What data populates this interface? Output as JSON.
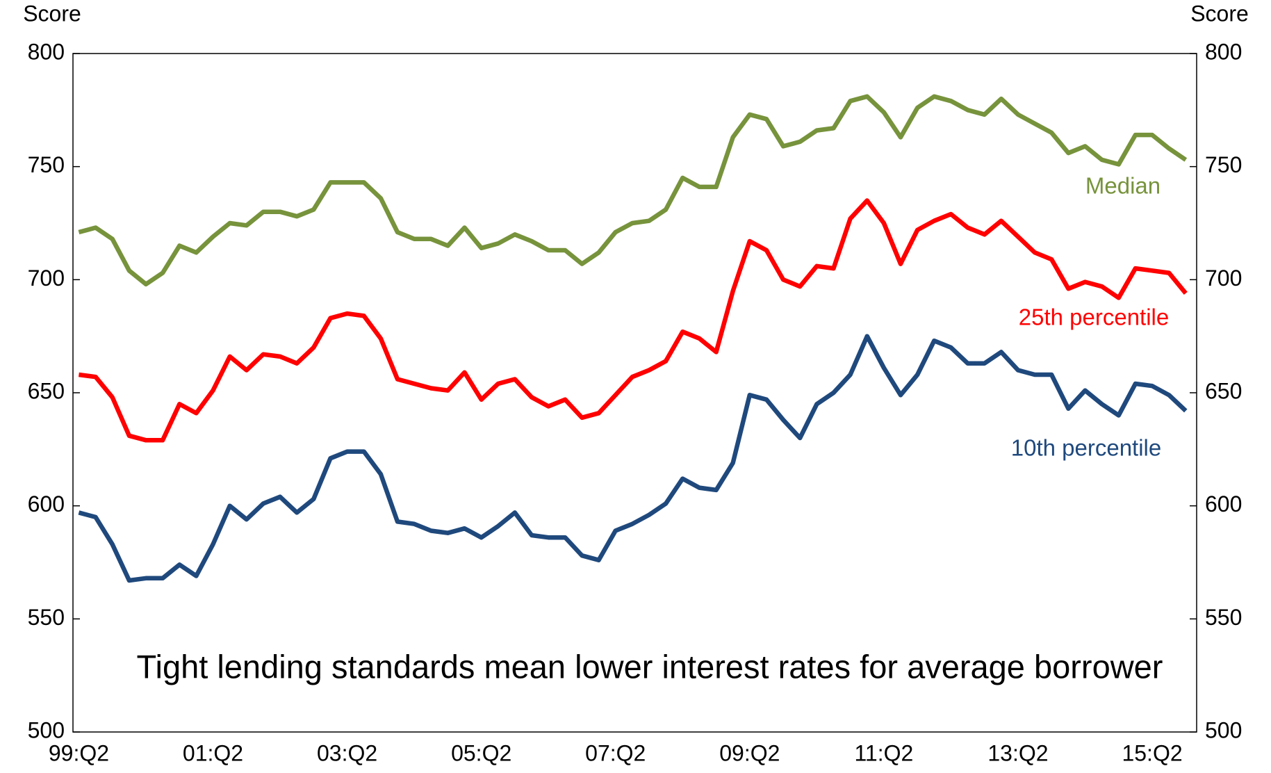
{
  "chart_data": {
    "type": "line",
    "y_label": "Score",
    "y2_label": "Score",
    "annotation": "Tight lending standards mean lower interest rates for average borrower",
    "categories": [
      "99:Q2",
      null,
      null,
      null,
      null,
      null,
      null,
      null,
      "01:Q2",
      null,
      null,
      null,
      null,
      null,
      null,
      null,
      "03:Q2",
      null,
      null,
      null,
      null,
      null,
      null,
      null,
      "05:Q2",
      null,
      null,
      null,
      null,
      null,
      null,
      null,
      "07:Q2",
      null,
      null,
      null,
      null,
      null,
      null,
      null,
      "09:Q2",
      null,
      null,
      null,
      null,
      null,
      null,
      null,
      "11:Q2",
      null,
      null,
      null,
      null,
      null,
      null,
      null,
      "13:Q2",
      null,
      null,
      null,
      null,
      null,
      null,
      null,
      "15:Q2",
      null,
      null
    ],
    "ylim": [
      500,
      800
    ],
    "yticks": [
      500,
      550,
      600,
      650,
      700,
      750,
      800
    ],
    "y2lim": [
      500,
      800
    ],
    "y2ticks": [
      500,
      550,
      600,
      650,
      700,
      750,
      800
    ],
    "series": [
      {
        "name": "Median",
        "color": "#77933c",
        "values": [
          721,
          723,
          718,
          704,
          698,
          703,
          715,
          712,
          719,
          725,
          724,
          730,
          730,
          728,
          731,
          743,
          743,
          743,
          736,
          721,
          718,
          718,
          715,
          723,
          714,
          716,
          720,
          717,
          713,
          713,
          707,
          712,
          721,
          725,
          726,
          731,
          745,
          741,
          741,
          763,
          773,
          771,
          759,
          761,
          766,
          767,
          779,
          781,
          774,
          763,
          776,
          781,
          779,
          775,
          773,
          780,
          773,
          769,
          765,
          756,
          759,
          753,
          751,
          764,
          764,
          758,
          753
        ]
      },
      {
        "name": "25th percentile",
        "color": "#ff0000",
        "values": [
          658,
          657,
          648,
          631,
          629,
          629,
          645,
          641,
          651,
          666,
          660,
          667,
          666,
          663,
          670,
          683,
          685,
          684,
          674,
          656,
          654,
          652,
          651,
          659,
          647,
          654,
          656,
          648,
          644,
          647,
          639,
          641,
          649,
          657,
          660,
          664,
          677,
          674,
          668,
          695,
          717,
          713,
          700,
          697,
          706,
          705,
          727,
          735,
          725,
          707,
          722,
          726,
          729,
          723,
          720,
          726,
          719,
          712,
          709,
          696,
          699,
          697,
          692,
          705,
          704,
          703,
          694
        ]
      },
      {
        "name": "10th percentile",
        "color": "#1f497d",
        "values": [
          597,
          595,
          583,
          567,
          568,
          568,
          574,
          569,
          583,
          600,
          594,
          601,
          604,
          597,
          603,
          621,
          624,
          624,
          614,
          593,
          592,
          589,
          588,
          590,
          586,
          591,
          597,
          587,
          586,
          586,
          578,
          576,
          589,
          592,
          596,
          601,
          612,
          608,
          607,
          619,
          649,
          647,
          638,
          630,
          645,
          650,
          658,
          675,
          661,
          649,
          658,
          673,
          670,
          663,
          663,
          668,
          660,
          658,
          658,
          643,
          651,
          645,
          640,
          654,
          653,
          649,
          642
        ]
      }
    ]
  }
}
